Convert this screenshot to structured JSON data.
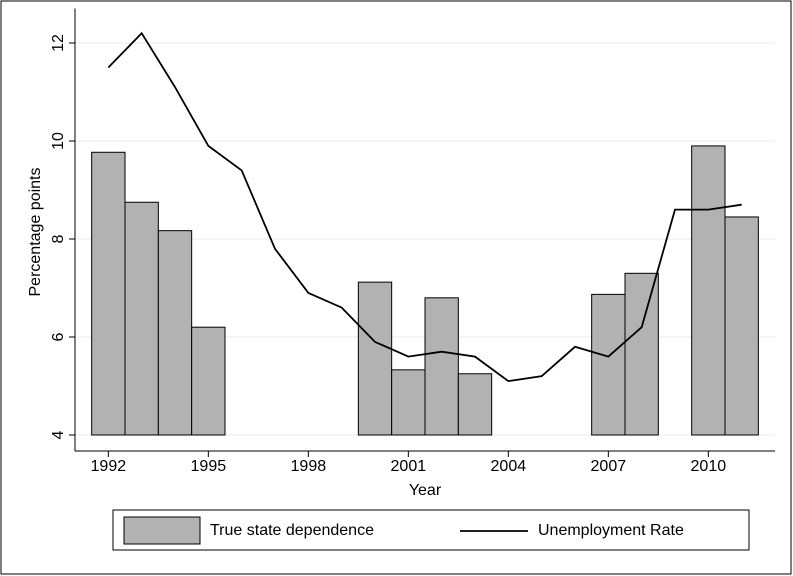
{
  "chart_data": {
    "type": "bar",
    "y_label": "Percentage points",
    "x_label": "Year",
    "x": [
      1992,
      1993,
      1994,
      1995,
      1996,
      1997,
      1998,
      1999,
      2000,
      2001,
      2002,
      2003,
      2004,
      2005,
      2006,
      2007,
      2008,
      2009,
      2010,
      2011
    ],
    "series": [
      {
        "name": "True state dependence",
        "type": "bar",
        "color": "#b2b2b2",
        "values": [
          9.77,
          8.75,
          8.17,
          6.2,
          null,
          null,
          null,
          null,
          7.12,
          5.33,
          6.8,
          5.25,
          null,
          null,
          null,
          6.87,
          7.3,
          null,
          9.9,
          8.45
        ]
      },
      {
        "name": "Unemployment Rate",
        "type": "line",
        "color": "#000000",
        "values": [
          11.5,
          12.2,
          11.1,
          9.9,
          9.4,
          7.8,
          6.9,
          6.6,
          5.9,
          5.6,
          5.7,
          5.6,
          5.1,
          5.2,
          5.8,
          5.6,
          6.2,
          8.6,
          8.6,
          8.7
        ]
      }
    ],
    "xlim": [
      1991,
      2012
    ],
    "xticks": [
      1992,
      1995,
      1998,
      2001,
      2004,
      2007,
      2010
    ],
    "ylim": [
      4,
      12.5
    ],
    "yticks": [
      4,
      6,
      8,
      10,
      12
    ],
    "grid": true,
    "legend": "bottom"
  }
}
